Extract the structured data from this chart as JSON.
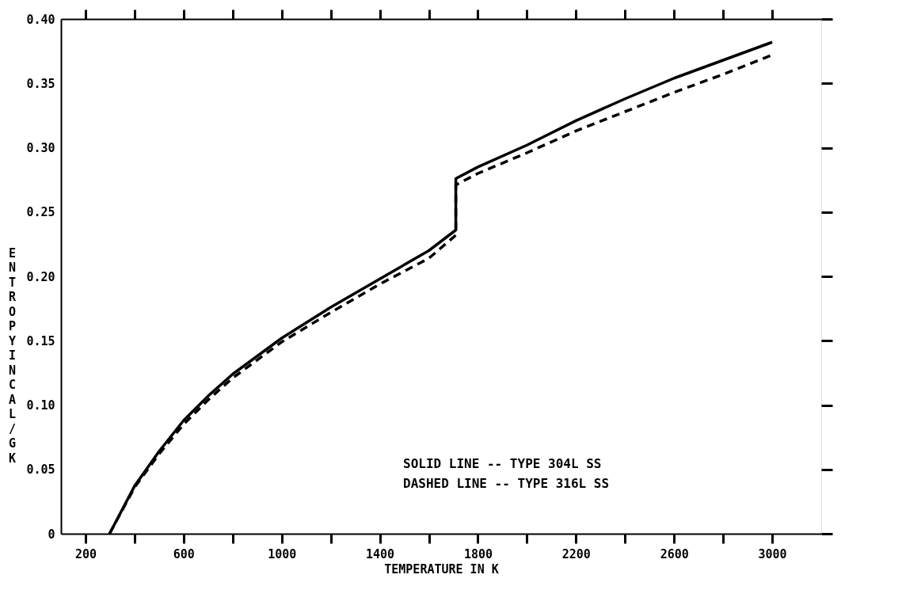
{
  "chart_data": {
    "type": "line",
    "xlabel": "TEMPERATURE IN K",
    "ylabel": "ENTROPY IN CAL/G K",
    "x": [
      298,
      400,
      500,
      600,
      700,
      800,
      1000,
      1200,
      1400,
      1600,
      1710,
      1710,
      1800,
      2000,
      2200,
      2400,
      2600,
      2800,
      3000
    ],
    "series": [
      {
        "color": "#000000",
        "line_style": "solid",
        "values": [
          0,
          0.037,
          0.064,
          0.088,
          0.107,
          0.124,
          0.152,
          0.176,
          0.198,
          0.22,
          0.236,
          0.276,
          0.285,
          0.302,
          0.321,
          0.338,
          0.354,
          0.368,
          0.382
        ]
      },
      {
        "color": "#000000",
        "line_style": "dashed",
        "values": [
          0,
          0.036,
          0.062,
          0.085,
          0.104,
          0.121,
          0.149,
          0.172,
          0.194,
          0.214,
          0.232,
          0.271,
          0.28,
          0.296,
          0.313,
          0.328,
          0.343,
          0.357,
          0.372
        ]
      }
    ],
    "annotations": [
      "SOLID  LINE -- TYPE 304L SS",
      "DASHED LINE -- TYPE 316L SS"
    ],
    "xlim": [
      100,
      3200
    ],
    "xticks": [
      200,
      {
        "value": 400,
        "label": null
      },
      600,
      {
        "value": 800,
        "label": null
      },
      1000,
      {
        "value": 1200,
        "label": null
      },
      1400,
      {
        "value": 1600,
        "label": null
      },
      1800,
      {
        "value": 2000,
        "label": null
      },
      2200,
      {
        "value": 2400,
        "label": null
      },
      2600,
      {
        "value": 2800,
        "label": null
      },
      3000
    ],
    "ylim": [
      0,
      0.4
    ],
    "yticks": [
      0,
      0.05,
      {
        "value": 0.1,
        "label": "0.10"
      },
      0.15,
      {
        "value": 0.2,
        "label": "0.20"
      },
      0.25,
      {
        "value": 0.3,
        "label": "0.30"
      },
      0.35,
      {
        "value": 0.4,
        "label": "0.40"
      }
    ],
    "grid": false,
    "marker": "none"
  }
}
